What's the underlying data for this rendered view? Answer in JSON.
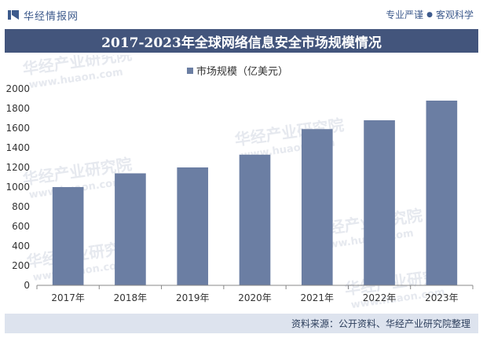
{
  "header": {
    "brand": "华经情报网",
    "tagline_left": "专业严谨",
    "tagline_right": "客观科学"
  },
  "title": "2017-2023年全球网络信息安全市场规模情况",
  "watermark": {
    "cn": "华经产业研究院",
    "url": "www.huaon.com"
  },
  "footer": {
    "source": "资料来源：公开资料、华经产业研究院整理"
  },
  "colors": {
    "bar": "#6b7ea3",
    "title_bg": "#43557c",
    "footer_bg": "#dde3ee"
  },
  "chart_data": {
    "type": "bar",
    "categories": [
      "2017年",
      "2018年",
      "2019年",
      "2020年",
      "2021年",
      "2022年",
      "2023年"
    ],
    "series": [
      {
        "name": "市场规模（亿美元）",
        "values": [
          1000,
          1140,
          1200,
          1330,
          1590,
          1680,
          1880
        ]
      }
    ],
    "ylim": [
      0,
      2000
    ],
    "yticks": [
      0,
      200,
      400,
      600,
      800,
      1000,
      1200,
      1400,
      1600,
      1800,
      2000
    ],
    "legend_position": "top-center",
    "grid": false
  }
}
